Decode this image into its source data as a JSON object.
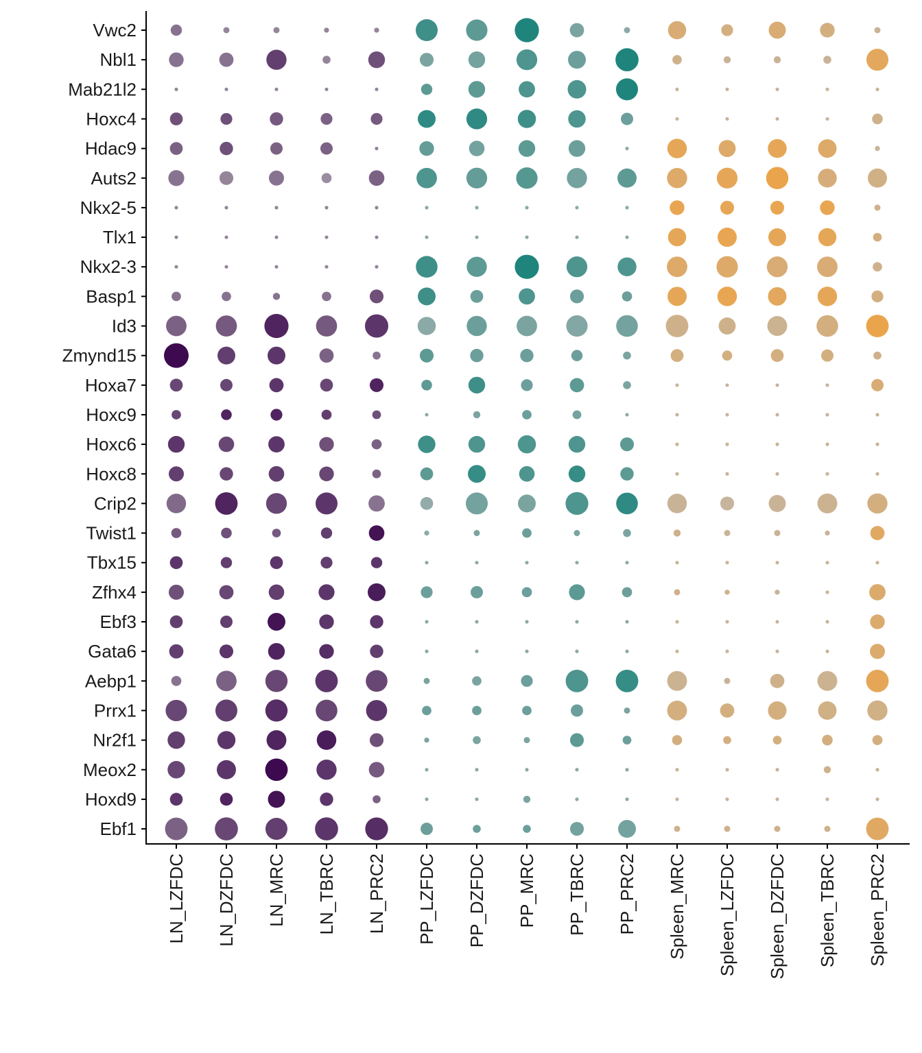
{
  "chart_data": {
    "type": "dotplot",
    "title": "",
    "xlabel": "",
    "ylabel": "",
    "grid": false,
    "genes": [
      "Vwc2",
      "Nbl1",
      "Mab21l2",
      "Hoxc4",
      "Hdac9",
      "Auts2",
      "Nkx2-5",
      "Tlx1",
      "Nkx2-3",
      "Basp1",
      "Id3",
      "Zmynd15",
      "Hoxa7",
      "Hoxc9",
      "Hoxc6",
      "Hoxc8",
      "Crip2",
      "Twist1",
      "Tbx15",
      "Zfhx4",
      "Ebf3",
      "Gata6",
      "Aebp1",
      "Prrx1",
      "Nr2f1",
      "Meox2",
      "Hoxd9",
      "Ebf1"
    ],
    "clusters": [
      "LN_LZFDC",
      "LN_DZFDC",
      "LN_MRC",
      "LN_TBRC",
      "LN_PRC2",
      "PP_LZFDC",
      "PP_DZFDC",
      "PP_MRC",
      "PP_TBRC",
      "PP_PRC2",
      "Spleen_MRC",
      "Spleen_LZFDC",
      "Spleen_DZFDC",
      "Spleen_TBRC",
      "Spleen_PRC2"
    ],
    "cluster_groups": [
      "LN",
      "LN",
      "LN",
      "LN",
      "LN",
      "PP",
      "PP",
      "PP",
      "PP",
      "PP",
      "Spleen",
      "Spleen",
      "Spleen",
      "Spleen",
      "Spleen"
    ],
    "group_colors": {
      "LN": "#3d0a4f",
      "PP": "#1f857c",
      "Spleen": "#eda446"
    },
    "note_size": "pct_expressed 0-1",
    "note_intensity": "avg_expression 0-1",
    "pct_expressed": [
      [
        0.1,
        0.03,
        0.03,
        0.02,
        0.02,
        0.38,
        0.36,
        0.46,
        0.16,
        0.03,
        0.26,
        0.11,
        0.23,
        0.17,
        0.03
      ],
      [
        0.17,
        0.16,
        0.32,
        0.05,
        0.22,
        0.15,
        0.22,
        0.34,
        0.25,
        0.42,
        0.07,
        0.04,
        0.04,
        0.05,
        0.38
      ],
      [
        0.01,
        0.01,
        0.01,
        0.01,
        0.01,
        0.1,
        0.22,
        0.21,
        0.27,
        0.38,
        0.01,
        0.01,
        0.01,
        0.01,
        0.01
      ],
      [
        0.13,
        0.11,
        0.14,
        0.11,
        0.11,
        0.25,
        0.34,
        0.26,
        0.24,
        0.12,
        0.01,
        0.01,
        0.01,
        0.01,
        0.09
      ],
      [
        0.13,
        0.14,
        0.12,
        0.12,
        0.01,
        0.17,
        0.19,
        0.22,
        0.22,
        0.01,
        0.3,
        0.23,
        0.28,
        0.27,
        0.02
      ],
      [
        0.2,
        0.15,
        0.18,
        0.08,
        0.19,
        0.33,
        0.34,
        0.36,
        0.32,
        0.29,
        0.32,
        0.34,
        0.39,
        0.28,
        0.29
      ],
      [
        0.01,
        0.01,
        0.01,
        0.01,
        0.01,
        0.01,
        0.01,
        0.01,
        0.01,
        0.01,
        0.17,
        0.15,
        0.15,
        0.17,
        0.03
      ],
      [
        0.01,
        0.01,
        0.01,
        0.01,
        0.01,
        0.01,
        0.01,
        0.01,
        0.01,
        0.01,
        0.26,
        0.29,
        0.25,
        0.26,
        0.06
      ],
      [
        0.01,
        0.01,
        0.01,
        0.01,
        0.01,
        0.37,
        0.32,
        0.46,
        0.34,
        0.28,
        0.33,
        0.36,
        0.34,
        0.33,
        0.07
      ],
      [
        0.07,
        0.07,
        0.04,
        0.07,
        0.15,
        0.25,
        0.13,
        0.21,
        0.15,
        0.08,
        0.29,
        0.3,
        0.27,
        0.3,
        0.11
      ],
      [
        0.33,
        0.35,
        0.46,
        0.35,
        0.43,
        0.26,
        0.32,
        0.33,
        0.36,
        0.37,
        0.4,
        0.23,
        0.31,
        0.37,
        0.4
      ],
      [
        0.48,
        0.25,
        0.25,
        0.16,
        0.05,
        0.15,
        0.14,
        0.14,
        0.1,
        0.05,
        0.13,
        0.08,
        0.13,
        0.12,
        0.05
      ],
      [
        0.13,
        0.12,
        0.16,
        0.13,
        0.15,
        0.09,
        0.22,
        0.11,
        0.16,
        0.05,
        0.01,
        0.01,
        0.01,
        0.01,
        0.12
      ],
      [
        0.07,
        0.09,
        0.11,
        0.08,
        0.06,
        0.01,
        0.04,
        0.07,
        0.06,
        0.01,
        0.01,
        0.01,
        0.01,
        0.01,
        0.01
      ],
      [
        0.22,
        0.19,
        0.21,
        0.17,
        0.08,
        0.24,
        0.22,
        0.26,
        0.22,
        0.15,
        0.01,
        0.01,
        0.01,
        0.01,
        0.01
      ],
      [
        0.18,
        0.14,
        0.19,
        0.17,
        0.06,
        0.13,
        0.25,
        0.19,
        0.22,
        0.14,
        0.01,
        0.01,
        0.01,
        0.01,
        0.01
      ],
      [
        0.3,
        0.4,
        0.34,
        0.38,
        0.21,
        0.13,
        0.38,
        0.25,
        0.41,
        0.37,
        0.3,
        0.15,
        0.23,
        0.31,
        0.32
      ],
      [
        0.08,
        0.09,
        0.06,
        0.1,
        0.19,
        0.02,
        0.03,
        0.07,
        0.03,
        0.05,
        0.04,
        0.03,
        0.03,
        0.02,
        0.16
      ],
      [
        0.13,
        0.1,
        0.13,
        0.11,
        0.1,
        0.01,
        0.01,
        0.01,
        0.01,
        0.01,
        0.01,
        0.01,
        0.01,
        0.01,
        0.01
      ],
      [
        0.18,
        0.16,
        0.19,
        0.2,
        0.25,
        0.11,
        0.12,
        0.08,
        0.2,
        0.08,
        0.03,
        0.02,
        0.02,
        0.01,
        0.21
      ],
      [
        0.13,
        0.12,
        0.25,
        0.17,
        0.14,
        0.01,
        0.01,
        0.01,
        0.01,
        0.01,
        0.01,
        0.01,
        0.01,
        0.01,
        0.17
      ],
      [
        0.16,
        0.15,
        0.22,
        0.17,
        0.14,
        0.01,
        0.01,
        0.01,
        0.01,
        0.01,
        0.01,
        0.01,
        0.01,
        0.01,
        0.18
      ],
      [
        0.08,
        0.33,
        0.39,
        0.4,
        0.37,
        0.03,
        0.07,
        0.11,
        0.4,
        0.4,
        0.31,
        0.03,
        0.16,
        0.31,
        0.4
      ],
      [
        0.36,
        0.38,
        0.39,
        0.37,
        0.35,
        0.07,
        0.07,
        0.07,
        0.12,
        0.03,
        0.31,
        0.16,
        0.27,
        0.27,
        0.32
      ],
      [
        0.24,
        0.26,
        0.31,
        0.3,
        0.15,
        0.02,
        0.05,
        0.03,
        0.15,
        0.06,
        0.08,
        0.05,
        0.06,
        0.09,
        0.08
      ],
      [
        0.24,
        0.29,
        0.4,
        0.32,
        0.19,
        0.01,
        0.01,
        0.01,
        0.01,
        0.01,
        0.01,
        0.01,
        0.01,
        0.04,
        0.01
      ],
      [
        0.13,
        0.13,
        0.23,
        0.14,
        0.05,
        0.01,
        0.01,
        0.04,
        0.01,
        0.01,
        0.01,
        0.01,
        0.01,
        0.01,
        0.01
      ],
      [
        0.4,
        0.42,
        0.38,
        0.42,
        0.41,
        0.12,
        0.05,
        0.05,
        0.15,
        0.25,
        0.03,
        0.03,
        0.03,
        0.03,
        0.4
      ]
    ],
    "avg_expression": [
      [
        0.4,
        0.3,
        0.3,
        0.3,
        0.3,
        0.8,
        0.6,
        1.0,
        0.4,
        0.3,
        0.6,
        0.5,
        0.6,
        0.5,
        0.3
      ],
      [
        0.4,
        0.4,
        0.7,
        0.3,
        0.6,
        0.4,
        0.45,
        0.7,
        0.5,
        1.0,
        0.4,
        0.3,
        0.3,
        0.3,
        0.8
      ],
      [
        0.3,
        0.3,
        0.3,
        0.3,
        0.3,
        0.6,
        0.6,
        0.7,
        0.7,
        1.0,
        0.3,
        0.3,
        0.3,
        0.3,
        0.3
      ],
      [
        0.6,
        0.6,
        0.55,
        0.5,
        0.55,
        0.9,
        0.9,
        0.8,
        0.7,
        0.5,
        0.3,
        0.3,
        0.3,
        0.3,
        0.4
      ],
      [
        0.5,
        0.6,
        0.5,
        0.5,
        0.3,
        0.55,
        0.45,
        0.6,
        0.5,
        0.3,
        0.85,
        0.7,
        0.85,
        0.7,
        0.3
      ],
      [
        0.4,
        0.3,
        0.4,
        0.25,
        0.5,
        0.7,
        0.55,
        0.65,
        0.45,
        0.6,
        0.7,
        0.85,
        0.95,
        0.55,
        0.45
      ],
      [
        0.3,
        0.3,
        0.3,
        0.3,
        0.3,
        0.3,
        0.3,
        0.3,
        0.3,
        0.3,
        0.9,
        0.85,
        0.9,
        0.9,
        0.4
      ],
      [
        0.3,
        0.3,
        0.3,
        0.3,
        0.3,
        0.3,
        0.3,
        0.3,
        0.3,
        0.3,
        0.85,
        0.9,
        0.85,
        0.85,
        0.5
      ],
      [
        0.3,
        0.3,
        0.3,
        0.3,
        0.3,
        0.8,
        0.6,
        1.0,
        0.7,
        0.7,
        0.7,
        0.7,
        0.6,
        0.6,
        0.4
      ],
      [
        0.4,
        0.4,
        0.4,
        0.4,
        0.6,
        0.8,
        0.5,
        0.7,
        0.5,
        0.5,
        0.85,
        0.9,
        0.8,
        0.85,
        0.5
      ],
      [
        0.5,
        0.55,
        0.85,
        0.55,
        0.75,
        0.3,
        0.5,
        0.4,
        0.35,
        0.45,
        0.4,
        0.4,
        0.35,
        0.5,
        0.95
      ],
      [
        1.0,
        0.7,
        0.75,
        0.5,
        0.4,
        0.6,
        0.5,
        0.5,
        0.5,
        0.4,
        0.5,
        0.5,
        0.5,
        0.5,
        0.4
      ],
      [
        0.65,
        0.65,
        0.75,
        0.65,
        0.85,
        0.6,
        0.8,
        0.5,
        0.6,
        0.4,
        0.3,
        0.3,
        0.3,
        0.3,
        0.6
      ],
      [
        0.65,
        0.85,
        0.85,
        0.7,
        0.6,
        0.3,
        0.4,
        0.5,
        0.45,
        0.3,
        0.3,
        0.3,
        0.3,
        0.3,
        0.3
      ],
      [
        0.75,
        0.65,
        0.75,
        0.6,
        0.5,
        0.8,
        0.7,
        0.7,
        0.7,
        0.6,
        0.3,
        0.3,
        0.3,
        0.3,
        0.3
      ],
      [
        0.7,
        0.65,
        0.7,
        0.65,
        0.5,
        0.6,
        0.85,
        0.7,
        0.85,
        0.6,
        0.3,
        0.3,
        0.3,
        0.3,
        0.3
      ],
      [
        0.45,
        0.85,
        0.65,
        0.75,
        0.4,
        0.25,
        0.45,
        0.4,
        0.7,
        0.9,
        0.3,
        0.25,
        0.3,
        0.35,
        0.5
      ],
      [
        0.55,
        0.6,
        0.55,
        0.7,
        0.95,
        0.3,
        0.4,
        0.5,
        0.4,
        0.4,
        0.4,
        0.3,
        0.3,
        0.3,
        0.75
      ],
      [
        0.75,
        0.7,
        0.75,
        0.7,
        0.75,
        0.3,
        0.3,
        0.3,
        0.3,
        0.3,
        0.3,
        0.3,
        0.3,
        0.3,
        0.3
      ],
      [
        0.6,
        0.65,
        0.7,
        0.75,
        0.9,
        0.5,
        0.5,
        0.5,
        0.6,
        0.5,
        0.4,
        0.4,
        0.3,
        0.3,
        0.65
      ],
      [
        0.7,
        0.7,
        0.95,
        0.75,
        0.75,
        0.3,
        0.3,
        0.3,
        0.3,
        0.3,
        0.3,
        0.3,
        0.3,
        0.3,
        0.65
      ],
      [
        0.7,
        0.75,
        0.85,
        0.8,
        0.7,
        0.3,
        0.3,
        0.3,
        0.3,
        0.3,
        0.3,
        0.3,
        0.3,
        0.3,
        0.65
      ],
      [
        0.4,
        0.5,
        0.65,
        0.75,
        0.65,
        0.4,
        0.4,
        0.5,
        0.7,
        0.85,
        0.35,
        0.3,
        0.4,
        0.35,
        0.85
      ],
      [
        0.65,
        0.7,
        0.8,
        0.65,
        0.75,
        0.5,
        0.5,
        0.5,
        0.5,
        0.4,
        0.5,
        0.5,
        0.5,
        0.45,
        0.45
      ],
      [
        0.7,
        0.75,
        0.85,
        0.9,
        0.6,
        0.4,
        0.4,
        0.4,
        0.6,
        0.5,
        0.5,
        0.5,
        0.5,
        0.5,
        0.5
      ],
      [
        0.65,
        0.75,
        1.0,
        0.75,
        0.55,
        0.3,
        0.3,
        0.3,
        0.3,
        0.3,
        0.3,
        0.3,
        0.3,
        0.4,
        0.3
      ],
      [
        0.75,
        0.85,
        0.95,
        0.75,
        0.5,
        0.3,
        0.3,
        0.4,
        0.3,
        0.3,
        0.3,
        0.3,
        0.3,
        0.3,
        0.3
      ],
      [
        0.5,
        0.65,
        0.7,
        0.75,
        0.8,
        0.5,
        0.5,
        0.5,
        0.45,
        0.45,
        0.4,
        0.4,
        0.4,
        0.4,
        0.75
      ]
    ]
  }
}
